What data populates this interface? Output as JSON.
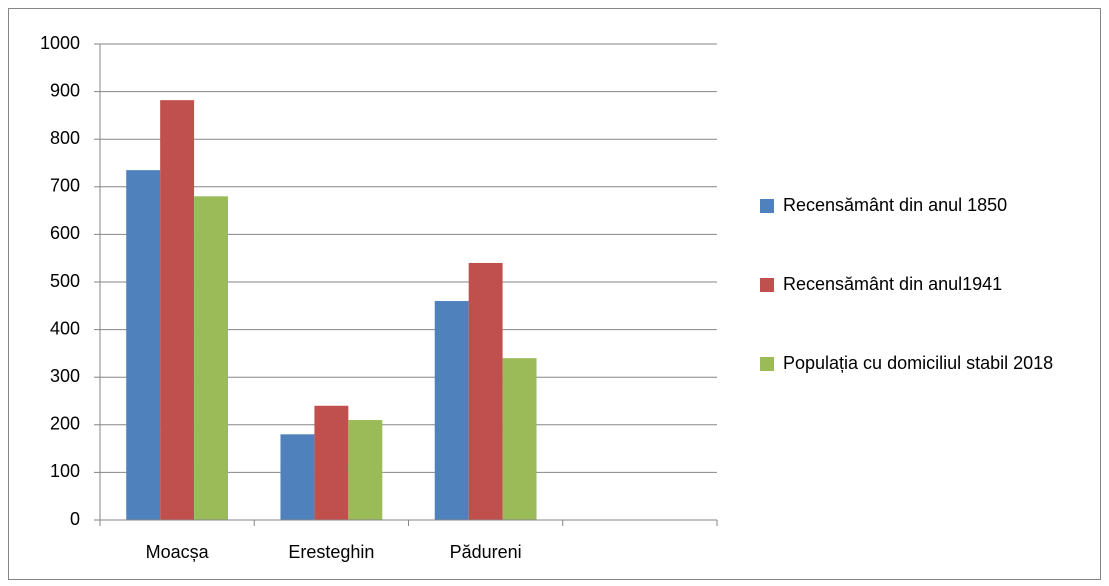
{
  "chart_data": {
    "type": "bar",
    "categories": [
      "Moacșa",
      "Eresteghin",
      "Pădureni",
      null
    ],
    "series": [
      {
        "name": "Recensământ din anul 1850",
        "color": "#4f81bd",
        "values": [
          735,
          180,
          460,
          null
        ]
      },
      {
        "name": "Recensământ din anul1941",
        "color": "#c0504d",
        "values": [
          882,
          240,
          540,
          null
        ]
      },
      {
        "name": "Populația cu domiciliul stabil 2018",
        "color": "#9bbb59",
        "values": [
          680,
          210,
          340,
          null
        ]
      }
    ],
    "ylim": [
      0,
      1000
    ],
    "yticks": [
      0,
      100,
      200,
      300,
      400,
      500,
      600,
      700,
      800,
      900,
      1000
    ],
    "grid": true,
    "legend": "right"
  }
}
